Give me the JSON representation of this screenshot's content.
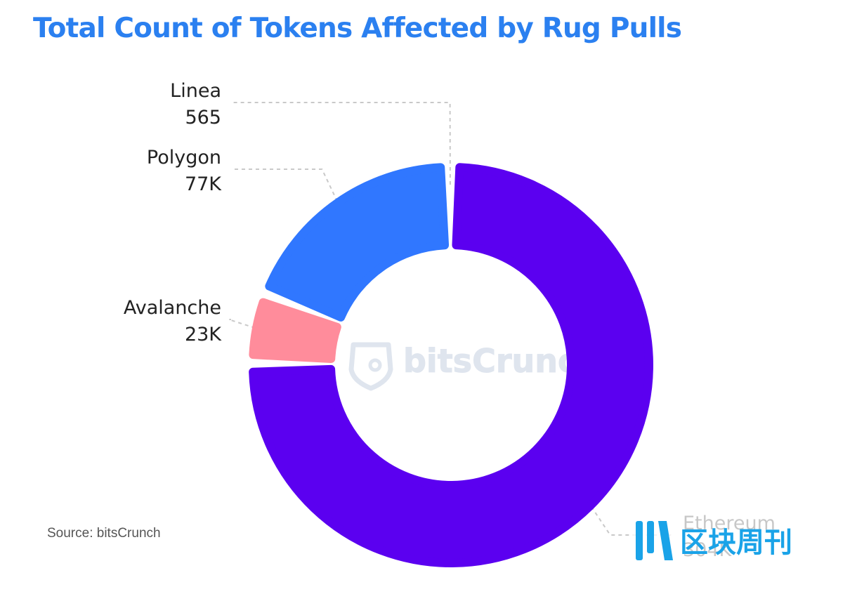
{
  "title": "Total Count of Tokens Affected by Rug Pulls",
  "source": "Source: bitsCrunch",
  "watermark": {
    "brand_text": "bitsCrunch",
    "corner_text": "区块周刊"
  },
  "colors": {
    "title": "#2b80f0",
    "watermark": "#dfe5ee",
    "corner_logo": "#1aa3e8"
  },
  "chart_data": {
    "type": "pie",
    "variant": "donut",
    "title": "Total Count of Tokens Affected by Rug Pulls",
    "slices": [
      {
        "name": "Ethereum",
        "value": 304000,
        "value_label": "304K",
        "color": "#5b00f0"
      },
      {
        "name": "Avalanche",
        "value": 23000,
        "value_label": "23K",
        "color": "#ff8c9b"
      },
      {
        "name": "Polygon",
        "value": 77000,
        "value_label": "77K",
        "color": "#3077ff"
      },
      {
        "name": "Linea",
        "value": 565,
        "value_label": "565",
        "color": "#a8c4ff"
      }
    ],
    "legend": "none",
    "labels": "outside with dashed leader lines"
  }
}
